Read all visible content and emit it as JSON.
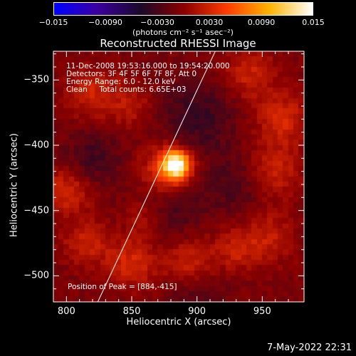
{
  "colorbar": {
    "tick_labels": [
      "−0.015",
      "−0.0090",
      "−0.0030",
      "0.0030",
      "0.0090",
      "0.015"
    ],
    "units_label": "(photons cm⁻² s⁻¹ asec⁻²)",
    "range": [
      -0.015,
      0.015
    ],
    "colormap": [
      "#0000ff",
      "#3c00a0",
      "#1a0a2a",
      "#8a0000",
      "#ff3c00",
      "#ffb400",
      "#ffffff"
    ]
  },
  "info": {
    "time": "11-Dec-2008 19:53:16.000 to 19:54:20.000",
    "detectors": "Detectors: 3F 4F 5F 6F 7F 8F, Att 0",
    "energy": "Energy Range: 6.0 - 12.0 keV",
    "method": "Clean     Total counts: 6.65E+03",
    "peak": "Position of Peak = [884,-415]"
  },
  "footer": {
    "timestamp": "7-May-2022 22:31"
  },
  "chart_data": {
    "type": "heatmap",
    "title": "Reconstructed RHESSI Image",
    "xlabel": "Heliocentric X (arcsec)",
    "ylabel": "Heliocentric Y (arcsec)",
    "xlim": [
      790,
      982
    ],
    "ylim": [
      -520,
      -328
    ],
    "x_ticks": [
      800,
      850,
      900,
      950
    ],
    "y_ticks": [
      -350,
      -400,
      -450,
      -500
    ],
    "x_tick_labels": [
      "800",
      "850",
      "900",
      "950"
    ],
    "y_tick_labels": [
      "−350",
      "−400",
      "−450",
      "−500"
    ],
    "peak_position": [
      884,
      -415
    ],
    "peak_value": 0.015,
    "limb_line": {
      "x": [
        824,
        914
      ],
      "y": [
        -520,
        -328
      ]
    },
    "blobs": [
      {
        "x": 884,
        "y": -415,
        "value": 0.015,
        "sigma": 7
      },
      {
        "x": 878,
        "y": -420,
        "value": 0.006,
        "sigma": 14
      },
      {
        "x": 820,
        "y": -360,
        "value": 0.0035,
        "sigma": 14
      },
      {
        "x": 850,
        "y": -370,
        "value": 0.0025,
        "sigma": 12
      },
      {
        "x": 940,
        "y": -345,
        "value": 0.0035,
        "sigma": 14
      },
      {
        "x": 965,
        "y": -380,
        "value": 0.004,
        "sigma": 14
      },
      {
        "x": 960,
        "y": -420,
        "value": 0.0035,
        "sigma": 14
      },
      {
        "x": 955,
        "y": -470,
        "value": 0.003,
        "sigma": 14
      },
      {
        "x": 800,
        "y": -435,
        "value": 0.004,
        "sigma": 13
      },
      {
        "x": 815,
        "y": -475,
        "value": 0.0035,
        "sigma": 12
      },
      {
        "x": 850,
        "y": -490,
        "value": 0.004,
        "sigma": 14
      },
      {
        "x": 895,
        "y": -490,
        "value": 0.0035,
        "sigma": 13
      },
      {
        "x": 930,
        "y": -480,
        "value": 0.003,
        "sigma": 12
      },
      {
        "x": 860,
        "y": -455,
        "value": 0.0025,
        "sigma": 10
      },
      {
        "x": 900,
        "y": -380,
        "value": -0.003,
        "sigma": 20
      },
      {
        "x": 880,
        "y": -445,
        "value": -0.0025,
        "sigma": 18
      },
      {
        "x": 820,
        "y": -410,
        "value": -0.0025,
        "sigma": 15
      },
      {
        "x": 930,
        "y": -430,
        "value": -0.002,
        "sigma": 16
      },
      {
        "x": 900,
        "y": -515,
        "value": -0.002,
        "sigma": 14
      }
    ]
  }
}
